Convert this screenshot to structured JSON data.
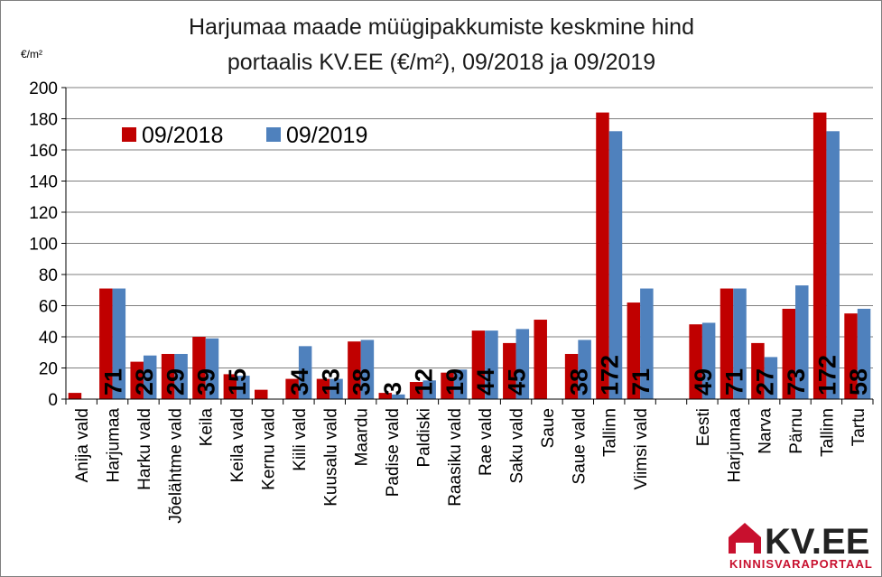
{
  "title_line1": "Harjumaa maade müügipakkumiste keskmine hind",
  "title_line2": "portaalis KV.EE (€/m²), 09/2018 ja 09/2019",
  "unit_label": "€/m²",
  "logo": {
    "text": "KV.EE",
    "subtitle": "KINNISVARAPORTAAL"
  },
  "colors": {
    "series_2018": "#c00000",
    "series_2019": "#4f81bd",
    "grid": "#7f7f7f"
  },
  "chart_data": {
    "type": "bar",
    "title": "Harjumaa maade müügipakkumiste keskmine hind portaalis KV.EE (€/m²), 09/2018 ja 09/2019",
    "ylabel": "€/m²",
    "ylim": [
      0,
      200
    ],
    "yticks": [
      0,
      20,
      40,
      60,
      80,
      100,
      120,
      140,
      160,
      180,
      200
    ],
    "grid": true,
    "legend_position": "top-left",
    "categories": [
      "Anija vald",
      "Harjumaa",
      "Harku vald",
      "Jõelähtme vald",
      "Keila",
      "Keila vald",
      "Kernu vald",
      "Kiili vald",
      "Kuusalu vald",
      "Maardu",
      "Padise vald",
      "Paldiski",
      "Raasiku vald",
      "Rae vald",
      "Saku vald",
      "Saue",
      "Saue vald",
      "Tallinn",
      "Viimsi vald",
      "",
      "Eesti",
      "Harjumaa",
      "Narva",
      "Pärnu",
      "Tallinn",
      "Tartu"
    ],
    "series": [
      {
        "name": "09/2018",
        "values": [
          4,
          71,
          24,
          29,
          40,
          16,
          6,
          13,
          13,
          37,
          4,
          11,
          17,
          44,
          36,
          51,
          29,
          184,
          62,
          null,
          48,
          71,
          36,
          58,
          184,
          55
        ]
      },
      {
        "name": "09/2019",
        "values": [
          null,
          71,
          28,
          29,
          39,
          15,
          null,
          34,
          13,
          38,
          3,
          12,
          19,
          44,
          45,
          null,
          38,
          172,
          71,
          null,
          49,
          71,
          27,
          73,
          172,
          58
        ]
      }
    ],
    "data_labels": [
      "",
      "71",
      "28",
      "29",
      "39",
      "15",
      "",
      "34",
      "13",
      "38",
      "3",
      "12",
      "19",
      "44",
      "45",
      "",
      "38",
      "172",
      "71",
      "",
      "49",
      "71",
      "27",
      "73",
      "172",
      "58"
    ]
  }
}
